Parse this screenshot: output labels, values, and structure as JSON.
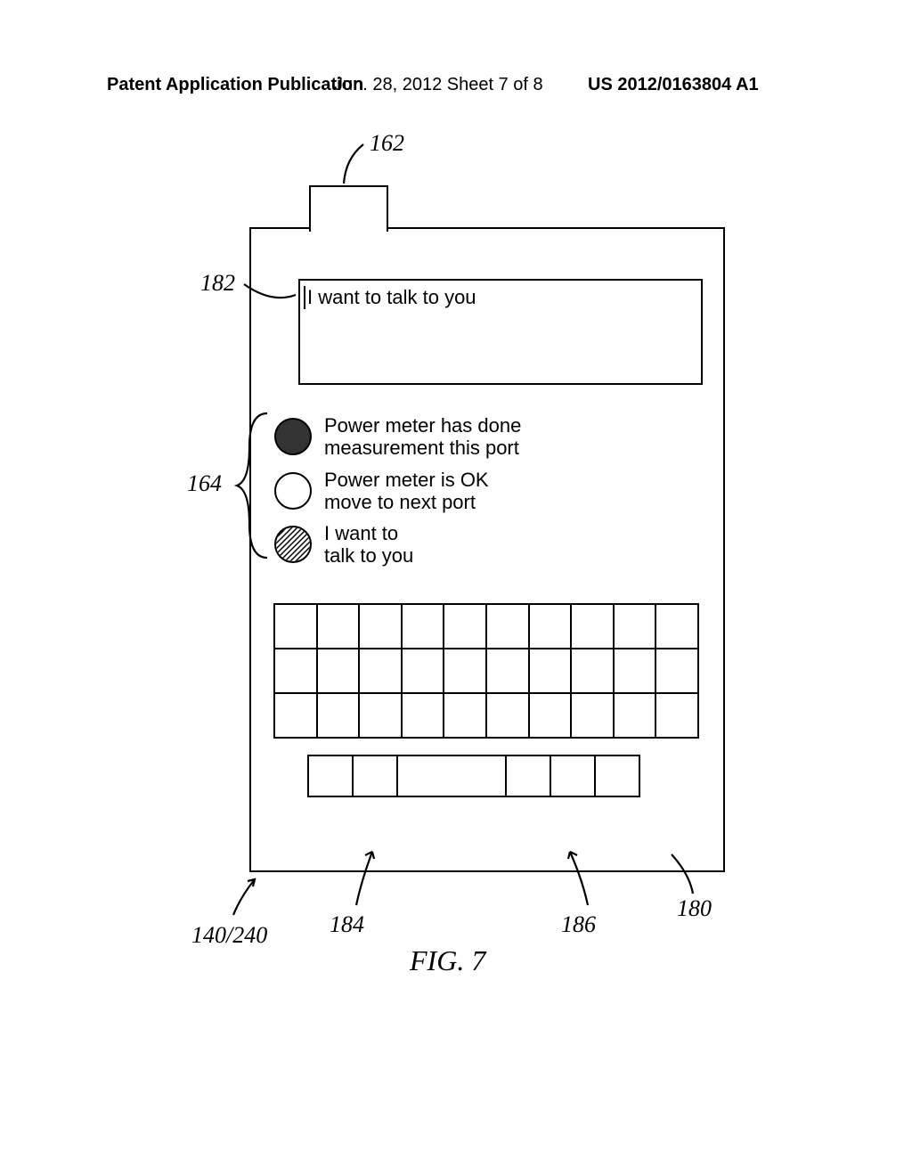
{
  "header": {
    "left": "Patent Application Publication",
    "center": "Jun. 28, 2012  Sheet 7 of 8",
    "right": "US 2012/0163804 A1"
  },
  "display": {
    "text": "I want to talk to you"
  },
  "legend": {
    "items": [
      {
        "line1": "Power meter has done",
        "line2": "measurement this port"
      },
      {
        "line1": "Power meter is OK",
        "line2": "move to next port"
      },
      {
        "line1": "I want to",
        "line2": "talk to you"
      }
    ]
  },
  "keyboard": {
    "topRows": 3,
    "topCols": 10,
    "bottomKeys": [
      48,
      48,
      120,
      48,
      48,
      48
    ]
  },
  "refs": {
    "r162": "162",
    "r182": "182",
    "r164": "164",
    "r140": "140/240",
    "r184": "184",
    "r186": "186",
    "r180": "180"
  },
  "caption": "FIG. 7",
  "colors": {
    "stroke": "#000000"
  }
}
